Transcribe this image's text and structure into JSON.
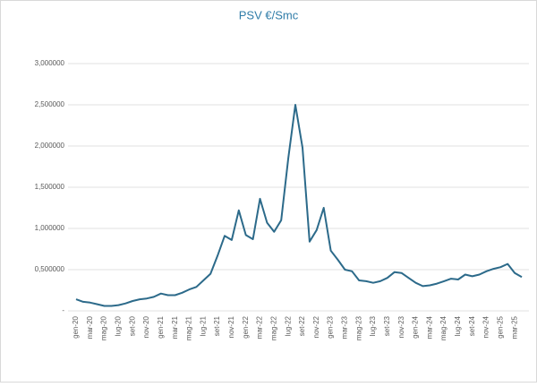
{
  "chart_data": {
    "type": "line",
    "title": "PSV €/Smc",
    "categories": [
      "gen-20",
      null,
      "mar-20",
      null,
      "mag-20",
      null,
      "lug-20",
      null,
      "set-20",
      null,
      "nov-20",
      null,
      "gen-21",
      null,
      "mar-21",
      null,
      "mag-21",
      null,
      "lug-21",
      null,
      "set-21",
      null,
      "nov-21",
      null,
      "gen-22",
      null,
      "mar-22",
      null,
      "mag-22",
      null,
      "lug-22",
      null,
      "set-22",
      null,
      "nov-22",
      null,
      "gen-23",
      null,
      "mar-23",
      null,
      "mag-23",
      null,
      "lug-23",
      null,
      "set-23",
      null,
      "nov-23",
      null,
      "gen-24",
      null,
      "mar-24",
      null,
      "mag-24",
      null,
      "lug-24",
      null,
      "set-24",
      null,
      "nov-24",
      null,
      "gen-25",
      null,
      "mar-25",
      null
    ],
    "values": [
      0.14,
      0.11,
      0.1,
      0.08,
      0.06,
      0.06,
      0.07,
      0.09,
      0.12,
      0.14,
      0.15,
      0.17,
      0.21,
      0.19,
      0.19,
      0.22,
      0.26,
      0.29,
      0.37,
      0.45,
      0.67,
      0.91,
      0.86,
      1.22,
      0.92,
      0.87,
      1.36,
      1.07,
      0.96,
      1.1,
      1.85,
      2.5,
      1.98,
      0.84,
      0.98,
      1.25,
      0.73,
      0.62,
      0.5,
      0.48,
      0.37,
      0.36,
      0.34,
      0.36,
      0.4,
      0.47,
      0.46,
      0.4,
      0.34,
      0.3,
      0.31,
      0.33,
      0.36,
      0.39,
      0.38,
      0.44,
      0.42,
      0.44,
      0.48,
      0.51,
      0.53,
      0.57,
      0.46,
      0.41
    ],
    "color": "#2c6a8a",
    "ylim": [
      0,
      3
    ],
    "yticks": [
      {
        "value": 0,
        "label": "-"
      },
      {
        "value": 0.5,
        "label": "0,500000"
      },
      {
        "value": 1,
        "label": "1,000000"
      },
      {
        "value": 1.5,
        "label": "1,500000"
      },
      {
        "value": 2,
        "label": "2,000000"
      },
      {
        "value": 2.5,
        "label": "2,500000"
      },
      {
        "value": 3,
        "label": "3,000000"
      }
    ],
    "grid": true
  }
}
